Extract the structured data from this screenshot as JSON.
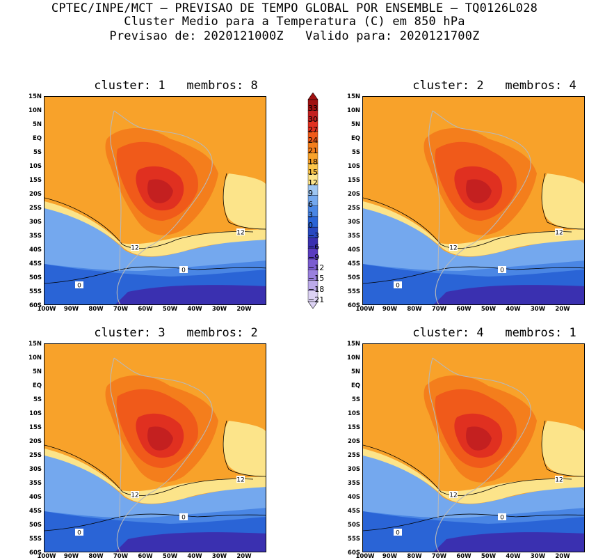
{
  "header": {
    "line1": "CPTEC/INPE/MCT – PREVISAO DE TEMPO GLOBAL POR ENSEMBLE – TQ0126L028",
    "line2": "Cluster Medio para a Temperatura (C) em 850 hPa",
    "line3": "Previsao de: 2020121000Z   Valido para: 2020121700Z"
  },
  "panels": [
    {
      "cluster_label": "cluster:",
      "cluster": "1",
      "members_label": "membros:",
      "members": "8",
      "contours": [
        {
          "value": "12",
          "label": "12"
        },
        {
          "value": "12",
          "label": "12"
        },
        {
          "value": "0",
          "label": "0"
        },
        {
          "value": "0",
          "label": "0"
        }
      ]
    },
    {
      "cluster_label": "cluster:",
      "cluster": "2",
      "members_label": "membros:",
      "members": "4",
      "contours": [
        {
          "value": "12",
          "label": "12"
        },
        {
          "value": "12",
          "label": "12"
        },
        {
          "value": "0",
          "label": "0"
        },
        {
          "value": "0",
          "label": "0"
        }
      ]
    },
    {
      "cluster_label": "cluster:",
      "cluster": "3",
      "members_label": "membros:",
      "members": "2",
      "contours": [
        {
          "value": "12",
          "label": "12"
        },
        {
          "value": "12",
          "label": "12"
        },
        {
          "value": "0",
          "label": "0"
        },
        {
          "value": "0",
          "label": "0"
        }
      ]
    },
    {
      "cluster_label": "cluster:",
      "cluster": "4",
      "members_label": "membros:",
      "members": "1",
      "contours": [
        {
          "value": "12",
          "label": "12"
        },
        {
          "value": "12",
          "label": "12"
        },
        {
          "value": "0",
          "label": "0"
        },
        {
          "value": "0",
          "label": "0"
        }
      ]
    }
  ],
  "lat_ticks": [
    "15N",
    "10N",
    "5N",
    "EQ",
    "5S",
    "10S",
    "15S",
    "20S",
    "25S",
    "30S",
    "35S",
    "40S",
    "45S",
    "50S",
    "55S",
    "60S"
  ],
  "lon_ticks": [
    "100W",
    "90W",
    "80W",
    "70W",
    "60W",
    "50W",
    "40W",
    "30W",
    "20W"
  ],
  "colorbar": {
    "labels": [
      "33",
      "30",
      "27",
      "24",
      "21",
      "18",
      "15",
      "12",
      "9",
      "6",
      "3",
      "0",
      "−3",
      "−6",
      "−9",
      "−12",
      "−15",
      "−18",
      "−21"
    ],
    "colors": [
      "#a01010",
      "#c42020",
      "#e03020",
      "#f05a1a",
      "#f47e1c",
      "#f8a22a",
      "#fcc64a",
      "#fce48a",
      "#9ec6f2",
      "#74a8ee",
      "#4a86e4",
      "#2a64d6",
      "#2848c0",
      "#3a30b0",
      "#5a3cc0",
      "#7a5cd0",
      "#9a80de",
      "#bcaaea",
      "#dcd2f4"
    ]
  }
}
